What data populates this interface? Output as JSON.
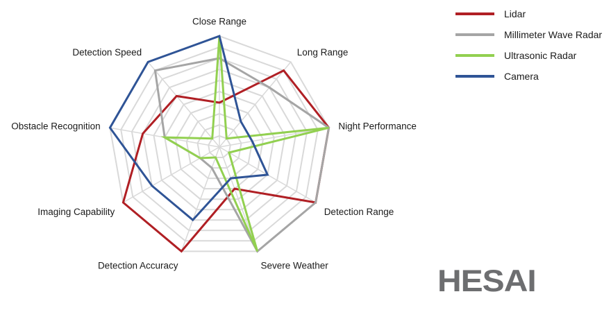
{
  "chart_data": {
    "type": "radar",
    "axes": [
      "Close Range",
      "Long Range",
      "Night Performance",
      "Detection Range",
      "Severe Weather",
      "Detection Accuracy",
      "Imaging Capability",
      "Obstacle Recognition",
      "Detection Speed"
    ],
    "rmax": 10,
    "gridLevels": 10,
    "series": [
      {
        "name": "Lidar",
        "color": "#b01f24",
        "values": [
          4,
          9,
          10,
          10,
          4,
          10,
          10,
          7,
          6
        ]
      },
      {
        "name": "Millimeter Wave Radar",
        "color": "#a5a5a5",
        "values": [
          8,
          7,
          10,
          10,
          10,
          2,
          2,
          5,
          9
        ]
      },
      {
        "name": "Ultrasonic Radar",
        "color": "#92d050",
        "values": [
          10,
          1,
          10,
          1,
          10,
          1,
          2,
          5,
          1
        ]
      },
      {
        "name": "Camera",
        "color": "#2f5496",
        "values": [
          10,
          3,
          3,
          5,
          3,
          7,
          7,
          10,
          10
        ]
      }
    ],
    "legend_position": "top-right",
    "grid": true
  },
  "logo": {
    "text": "HESAI",
    "color": "#6d6e70"
  }
}
